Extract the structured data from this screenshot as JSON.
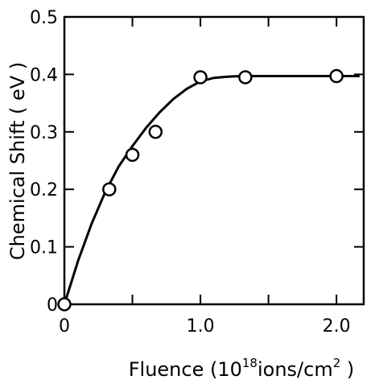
{
  "chart_data": {
    "type": "scatter",
    "xlabel_parts": [
      "Fluence (10",
      "18",
      "ions/cm",
      "2",
      " )"
    ],
    "ylabel": "Chemical Shift ( eV )",
    "xlim": [
      0,
      2.2
    ],
    "ylim": [
      0,
      0.5
    ],
    "x_ticks": [
      0,
      0.5,
      1.0,
      1.5,
      2.0
    ],
    "x_tick_labels": [
      "0",
      "",
      "1.0",
      "",
      "2.0"
    ],
    "y_ticks": [
      0,
      0.1,
      0.2,
      0.3,
      0.4,
      0.5
    ],
    "y_tick_labels": [
      "0",
      "0.1",
      "0.2",
      "0.3",
      "0.4",
      "0.5"
    ],
    "grid": false,
    "series": [
      {
        "marker": "open-circle",
        "x": [
          0,
          0.33,
          0.5,
          0.67,
          1.0,
          1.33,
          2.0
        ],
        "y": [
          0,
          0.2,
          0.26,
          0.3,
          0.395,
          0.395,
          0.397
        ]
      }
    ],
    "fit_curve": {
      "x": [
        0,
        0.1,
        0.2,
        0.3,
        0.4,
        0.5,
        0.6,
        0.7,
        0.8,
        0.9,
        1.0,
        1.1,
        1.2,
        1.3,
        1.5,
        2.0,
        2.17
      ],
      "y": [
        0,
        0.075,
        0.14,
        0.195,
        0.24,
        0.275,
        0.307,
        0.334,
        0.357,
        0.375,
        0.388,
        0.394,
        0.396,
        0.397,
        0.397,
        0.397,
        0.397
      ]
    },
    "colors": {
      "line": "#000000",
      "marker_face": "#ffffff",
      "background": "#ffffff"
    }
  }
}
